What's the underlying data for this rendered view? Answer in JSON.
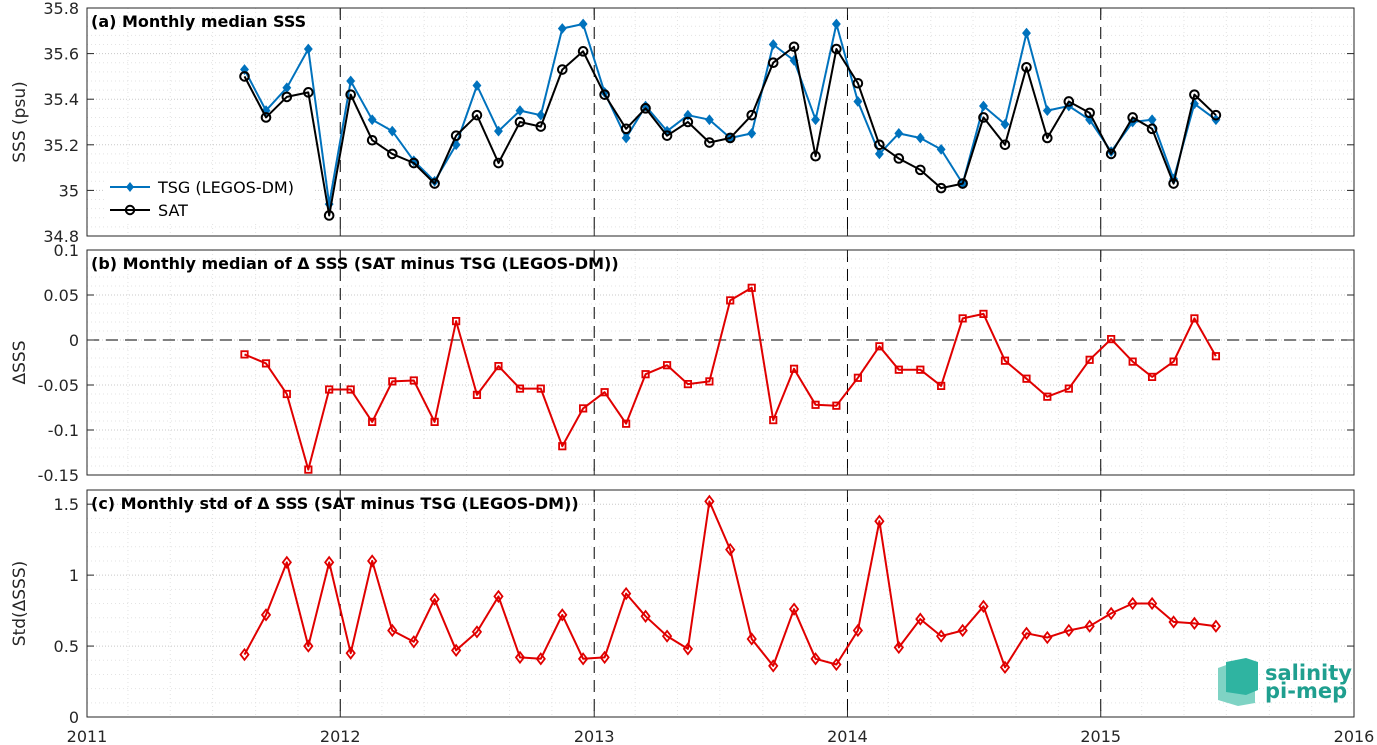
{
  "colors": {
    "tsg": "#0072bd",
    "sat": "#000000",
    "delta": "#e00000",
    "grid": "#c8c8c8"
  },
  "logo": {
    "line1": "salinity",
    "line2": "pi-mep"
  },
  "x_axis": {
    "ticks": [
      "2011",
      "2012",
      "2013",
      "2014",
      "2015",
      "2016"
    ],
    "range": [
      "2011-01-01",
      "2016-01-01"
    ]
  },
  "chart_data": [
    {
      "type": "line",
      "title": "(a) Monthly median SSS",
      "ylabel": "SSS (psu)",
      "ylim": [
        34.8,
        35.8
      ],
      "yticks": [
        "34.8",
        "35",
        "35.2",
        "35.4",
        "35.6",
        "35.8"
      ],
      "grid": true,
      "legend": "left",
      "x": [
        "2011-08",
        "2011-09",
        "2011-10",
        "2011-11",
        "2011-12",
        "2012-01",
        "2012-02",
        "2012-03",
        "2012-04",
        "2012-05",
        "2012-06",
        "2012-07",
        "2012-08",
        "2012-09",
        "2012-10",
        "2012-11",
        "2012-12",
        "2013-01",
        "2013-02",
        "2013-03",
        "2013-04",
        "2013-05",
        "2013-06",
        "2013-07",
        "2013-08",
        "2013-09",
        "2013-10",
        "2013-11",
        "2013-12",
        "2014-01",
        "2014-02",
        "2014-03",
        "2014-04",
        "2014-05",
        "2014-06",
        "2014-07",
        "2014-08",
        "2014-09",
        "2014-10",
        "2014-11",
        "2014-12",
        "2015-01",
        "2015-02",
        "2015-03",
        "2015-04",
        "2015-05",
        "2015-06"
      ],
      "series": [
        {
          "name": "TSG (LEGOS-DM)",
          "marker": "diamond",
          "values": [
            35.53,
            35.35,
            35.45,
            35.62,
            34.94,
            35.48,
            35.31,
            35.26,
            35.13,
            35.04,
            35.2,
            35.46,
            35.26,
            35.35,
            35.33,
            35.71,
            35.73,
            35.43,
            35.23,
            35.37,
            35.26,
            35.33,
            35.31,
            35.23,
            35.25,
            35.64,
            35.57,
            35.31,
            35.73,
            35.39,
            35.16,
            35.25,
            35.23,
            35.18,
            35.03,
            35.37,
            35.29,
            35.69,
            35.35,
            35.37,
            35.31,
            35.17,
            35.3,
            35.31,
            35.05,
            35.38,
            35.31
          ]
        },
        {
          "name": "SAT",
          "marker": "circle",
          "values": [
            35.5,
            35.32,
            35.41,
            35.43,
            34.89,
            35.42,
            35.22,
            35.16,
            35.12,
            35.03,
            35.24,
            35.33,
            35.12,
            35.3,
            35.28,
            35.53,
            35.61,
            35.42,
            35.27,
            35.36,
            35.24,
            35.3,
            35.21,
            35.23,
            35.33,
            35.56,
            35.63,
            35.15,
            35.62,
            35.47,
            35.2,
            35.14,
            35.09,
            35.01,
            35.03,
            35.32,
            35.2,
            35.54,
            35.23,
            35.39,
            35.34,
            35.16,
            35.32,
            35.27,
            35.03,
            35.42,
            35.33
          ]
        }
      ]
    },
    {
      "type": "line",
      "title": "(b) Monthly median of Δ SSS (SAT minus TSG (LEGOS-DM))",
      "ylabel": "ΔSSS",
      "ylim": [
        -0.15,
        0.1
      ],
      "yticks": [
        "-0.15",
        "-0.1",
        "-0.05",
        "0",
        "0.05",
        "0.1"
      ],
      "grid": true,
      "zero_line": "dashed",
      "x": [
        "2011-08",
        "2011-09",
        "2011-10",
        "2011-11",
        "2011-12",
        "2012-01",
        "2012-02",
        "2012-03",
        "2012-04",
        "2012-05",
        "2012-06",
        "2012-07",
        "2012-08",
        "2012-09",
        "2012-10",
        "2012-11",
        "2012-12",
        "2013-01",
        "2013-02",
        "2013-03",
        "2013-04",
        "2013-05",
        "2013-06",
        "2013-07",
        "2013-08",
        "2013-09",
        "2013-10",
        "2013-11",
        "2013-12",
        "2014-01",
        "2014-02",
        "2014-03",
        "2014-04",
        "2014-05",
        "2014-06",
        "2014-07",
        "2014-08",
        "2014-09",
        "2014-10",
        "2014-11",
        "2014-12",
        "2015-01",
        "2015-02",
        "2015-03",
        "2015-04",
        "2015-05",
        "2015-06"
      ],
      "series": [
        {
          "marker": "square",
          "values": [
            -0.016,
            -0.026,
            -0.06,
            -0.144,
            -0.055,
            -0.055,
            -0.091,
            -0.046,
            -0.045,
            -0.091,
            0.021,
            -0.061,
            -0.029,
            -0.054,
            -0.054,
            -0.118,
            -0.076,
            -0.058,
            -0.093,
            -0.038,
            -0.028,
            -0.049,
            -0.046,
            0.044,
            0.058,
            -0.089,
            -0.032,
            -0.072,
            -0.073,
            -0.042,
            -0.007,
            -0.033,
            -0.033,
            -0.051,
            0.024,
            0.029,
            -0.023,
            -0.043,
            -0.063,
            -0.054,
            -0.022,
            0.001,
            -0.024,
            -0.041,
            -0.024,
            0.024,
            -0.018
          ]
        }
      ]
    },
    {
      "type": "line",
      "title": "(c) Monthly std of Δ SSS (SAT minus TSG (LEGOS-DM))",
      "ylabel": "Std(ΔSSS)",
      "ylim": [
        0,
        1.6
      ],
      "yticks": [
        "0",
        "0.5",
        "1",
        "1.5"
      ],
      "grid": true,
      "x": [
        "2011-08",
        "2011-09",
        "2011-10",
        "2011-11",
        "2011-12",
        "2012-01",
        "2012-02",
        "2012-03",
        "2012-04",
        "2012-05",
        "2012-06",
        "2012-07",
        "2012-08",
        "2012-09",
        "2012-10",
        "2012-11",
        "2012-12",
        "2013-01",
        "2013-02",
        "2013-03",
        "2013-04",
        "2013-05",
        "2013-06",
        "2013-07",
        "2013-08",
        "2013-09",
        "2013-10",
        "2013-11",
        "2013-12",
        "2014-01",
        "2014-02",
        "2014-03",
        "2014-04",
        "2014-05",
        "2014-06",
        "2014-07",
        "2014-08",
        "2014-09",
        "2014-10",
        "2014-11",
        "2014-12",
        "2015-01",
        "2015-02",
        "2015-03",
        "2015-04",
        "2015-05",
        "2015-06"
      ],
      "series": [
        {
          "marker": "diamond",
          "values": [
            0.44,
            0.72,
            1.09,
            0.5,
            1.09,
            0.45,
            1.1,
            0.61,
            0.53,
            0.83,
            0.47,
            0.6,
            0.85,
            0.42,
            0.41,
            0.72,
            0.41,
            0.42,
            0.87,
            0.71,
            0.57,
            0.48,
            1.52,
            1.18,
            0.55,
            0.36,
            0.76,
            0.41,
            0.37,
            0.61,
            1.38,
            0.49,
            0.69,
            0.57,
            0.61,
            0.78,
            0.35,
            0.59,
            0.56,
            0.61,
            0.64,
            0.73,
            0.8,
            0.8,
            0.67,
            0.66,
            0.64
          ]
        }
      ]
    }
  ]
}
